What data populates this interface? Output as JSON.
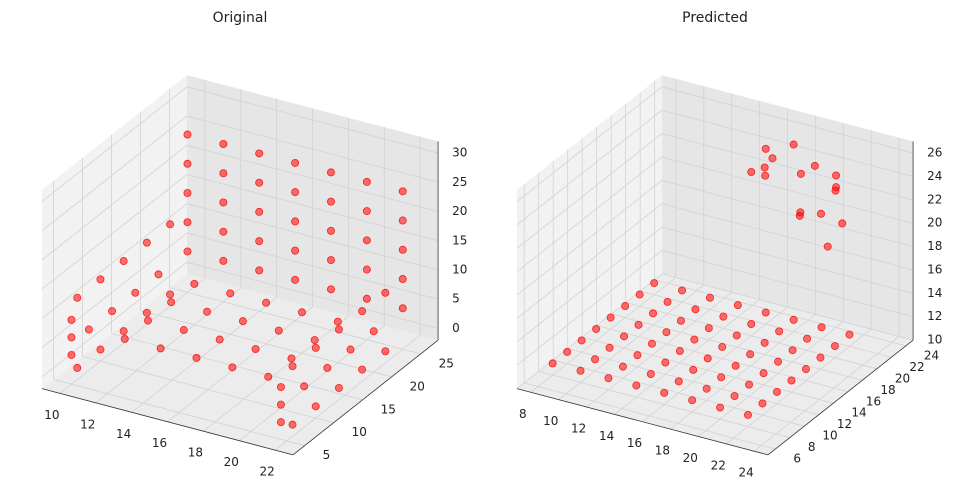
{
  "chart_data": [
    {
      "type": "scatter3d",
      "title": "Original",
      "color": "#ff0000",
      "x": [
        10,
        10,
        10,
        10,
        10,
        12,
        12,
        12,
        12,
        12,
        14,
        14,
        14,
        14,
        14,
        16,
        16,
        16,
        16,
        16,
        18,
        18,
        18,
        18,
        18,
        20,
        20,
        20,
        20,
        20,
        22,
        22,
        22,
        22,
        22,
        10,
        10,
        10,
        10,
        12,
        12,
        12,
        12,
        14,
        14,
        14,
        14,
        16,
        16,
        16,
        16,
        18,
        18,
        18,
        18,
        20,
        20,
        20,
        20,
        22,
        22,
        22,
        22,
        10,
        10,
        10,
        10,
        10,
        10,
        10,
        10,
        10,
        10,
        10,
        10,
        10,
        22,
        22,
        22,
        22,
        22,
        22,
        22,
        22,
        22,
        22,
        22,
        22,
        22
      ],
      "y": [
        25,
        25,
        25,
        25,
        25,
        25,
        25,
        25,
        25,
        25,
        25,
        25,
        25,
        25,
        25,
        25,
        25,
        25,
        25,
        25,
        25,
        25,
        25,
        25,
        25,
        25,
        25,
        25,
        25,
        25,
        25,
        25,
        25,
        25,
        25,
        8,
        12,
        16,
        20,
        8,
        12,
        16,
        20,
        8,
        12,
        16,
        20,
        8,
        12,
        16,
        20,
        8,
        12,
        16,
        20,
        8,
        12,
        16,
        20,
        8,
        12,
        16,
        20,
        6,
        10,
        14,
        18,
        22,
        6,
        10,
        14,
        18,
        22,
        5,
        5,
        5,
        6,
        10,
        14,
        18,
        22,
        6,
        10,
        14,
        18,
        22,
        4,
        4,
        4
      ],
      "z": [
        5,
        10,
        15,
        20,
        25,
        5,
        10,
        15,
        20,
        25,
        5,
        10,
        15,
        20,
        25,
        5,
        10,
        15,
        20,
        25,
        5,
        10,
        15,
        20,
        25,
        5,
        10,
        15,
        20,
        25,
        5,
        10,
        15,
        20,
        25,
        5,
        5,
        5,
        5,
        5,
        5,
        5,
        5,
        5,
        5,
        5,
        5,
        5,
        5,
        5,
        5,
        5,
        5,
        5,
        5,
        5,
        5,
        5,
        5,
        5,
        5,
        5,
        5,
        12,
        12,
        12,
        12,
        12,
        0,
        0,
        0,
        0,
        0,
        3,
        6,
        9,
        10,
        10,
        10,
        10,
        10,
        0,
        0,
        0,
        0,
        0,
        2,
        5,
        8
      ],
      "xlim": [
        9,
        23
      ],
      "xticks": [
        10,
        12,
        14,
        16,
        18,
        20,
        22
      ],
      "ylim": [
        3,
        28
      ],
      "yticks": [
        5,
        10,
        15,
        20,
        25
      ],
      "zlim": [
        -2,
        32
      ],
      "zticks": [
        0,
        5,
        10,
        15,
        20,
        25,
        30
      ],
      "grid": true
    },
    {
      "type": "scatter3d",
      "title": "Predicted",
      "color": "#ff0000",
      "x": [
        8,
        8,
        8,
        8,
        8,
        8,
        8,
        8,
        10,
        10,
        10,
        10,
        10,
        10,
        10,
        10,
        12,
        12,
        12,
        12,
        12,
        12,
        12,
        12,
        14,
        14,
        14,
        14,
        14,
        14,
        14,
        14,
        16,
        16,
        16,
        16,
        16,
        16,
        16,
        16,
        18,
        18,
        18,
        18,
        18,
        18,
        18,
        18,
        20,
        20,
        20,
        20,
        20,
        20,
        20,
        20,
        22,
        22,
        22,
        22,
        22,
        22,
        22,
        22,
        16,
        17,
        18,
        19,
        20,
        21,
        22,
        16,
        18,
        20,
        22,
        17,
        19,
        21,
        18,
        20
      ],
      "y": [
        8,
        10,
        12,
        14,
        16,
        18,
        20,
        22,
        8,
        10,
        12,
        14,
        16,
        18,
        20,
        22,
        8,
        10,
        12,
        14,
        16,
        18,
        20,
        22,
        8,
        10,
        12,
        14,
        16,
        18,
        20,
        22,
        8,
        10,
        12,
        14,
        16,
        18,
        20,
        22,
        8,
        10,
        12,
        14,
        16,
        18,
        20,
        22,
        8,
        10,
        12,
        14,
        16,
        18,
        20,
        22,
        8,
        10,
        12,
        14,
        16,
        18,
        20,
        22,
        20,
        21,
        22,
        23,
        24,
        20,
        21,
        22,
        23,
        24,
        19,
        20,
        21,
        22,
        18,
        19
      ],
      "z": [
        11,
        11,
        11,
        11,
        11,
        11,
        11,
        11,
        11,
        11,
        11,
        11,
        11,
        11,
        11,
        11,
        11,
        11,
        11,
        11,
        11,
        11,
        11,
        11,
        11,
        11,
        11,
        11,
        11,
        11,
        11,
        11,
        11,
        11,
        11,
        11,
        11,
        11,
        11,
        11,
        11,
        11,
        11,
        11,
        11,
        11,
        11,
        11,
        11,
        11,
        11,
        11,
        11,
        11,
        11,
        11,
        11,
        11,
        11,
        11,
        11,
        11,
        11,
        11,
        24,
        25,
        26,
        24,
        23,
        22,
        21,
        25,
        23,
        22,
        20,
        24,
        21,
        23,
        26,
        22
      ],
      "xlim": [
        7,
        25
      ],
      "xticks": [
        8,
        10,
        12,
        14,
        16,
        18,
        20,
        22,
        24
      ],
      "ylim": [
        5,
        25
      ],
      "yticks": [
        6,
        8,
        10,
        12,
        14,
        16,
        18,
        20,
        22,
        24
      ],
      "zlim": [
        10,
        27
      ],
      "zticks": [
        10,
        12,
        14,
        16,
        18,
        20,
        22,
        24,
        26
      ],
      "grid": true
    }
  ]
}
